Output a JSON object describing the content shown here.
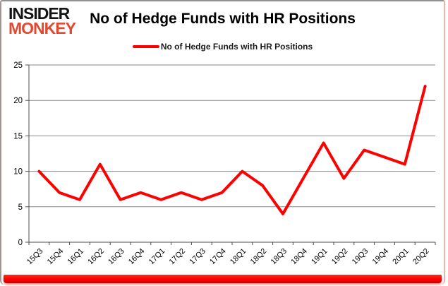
{
  "logo": {
    "line1": "INSIDER",
    "line2": "MONKEY"
  },
  "header": {
    "title": "No of Hedge Funds with HR Positions"
  },
  "legend": {
    "label": "No of Hedge Funds with HR Positions"
  },
  "colors": {
    "series_line": "#ff0000",
    "accent_bar": "#fb0000",
    "logo_black": "#141414",
    "logo_orange": "#e2492f",
    "gridline": "#878787",
    "axis": "#4d4d4d",
    "tick_label": "#000000"
  },
  "chart_data": {
    "type": "line",
    "title": "No of Hedge Funds with HR Positions",
    "categories": [
      "15Q3",
      "15Q4",
      "16Q1",
      "16Q2",
      "16Q3",
      "16Q4",
      "17Q1",
      "17Q2",
      "17Q3",
      "17Q4",
      "18Q1",
      "18Q2",
      "18Q3",
      "18Q4",
      "19Q1",
      "19Q2",
      "19Q3",
      "19Q4",
      "20Q1",
      "20Q2"
    ],
    "series": [
      {
        "name": "No of Hedge Funds with HR Positions",
        "color": "#ff0000",
        "values": [
          10,
          7,
          6,
          11,
          6,
          7,
          6,
          7,
          6,
          7,
          10,
          8,
          4,
          9,
          14,
          9,
          13,
          12,
          11,
          22
        ]
      }
    ],
    "xlabel": "",
    "ylabel": "",
    "ylim": [
      0,
      25
    ],
    "yticks": [
      0,
      5,
      10,
      15,
      20,
      25
    ],
    "grid": true,
    "legend_position": "top-center"
  }
}
